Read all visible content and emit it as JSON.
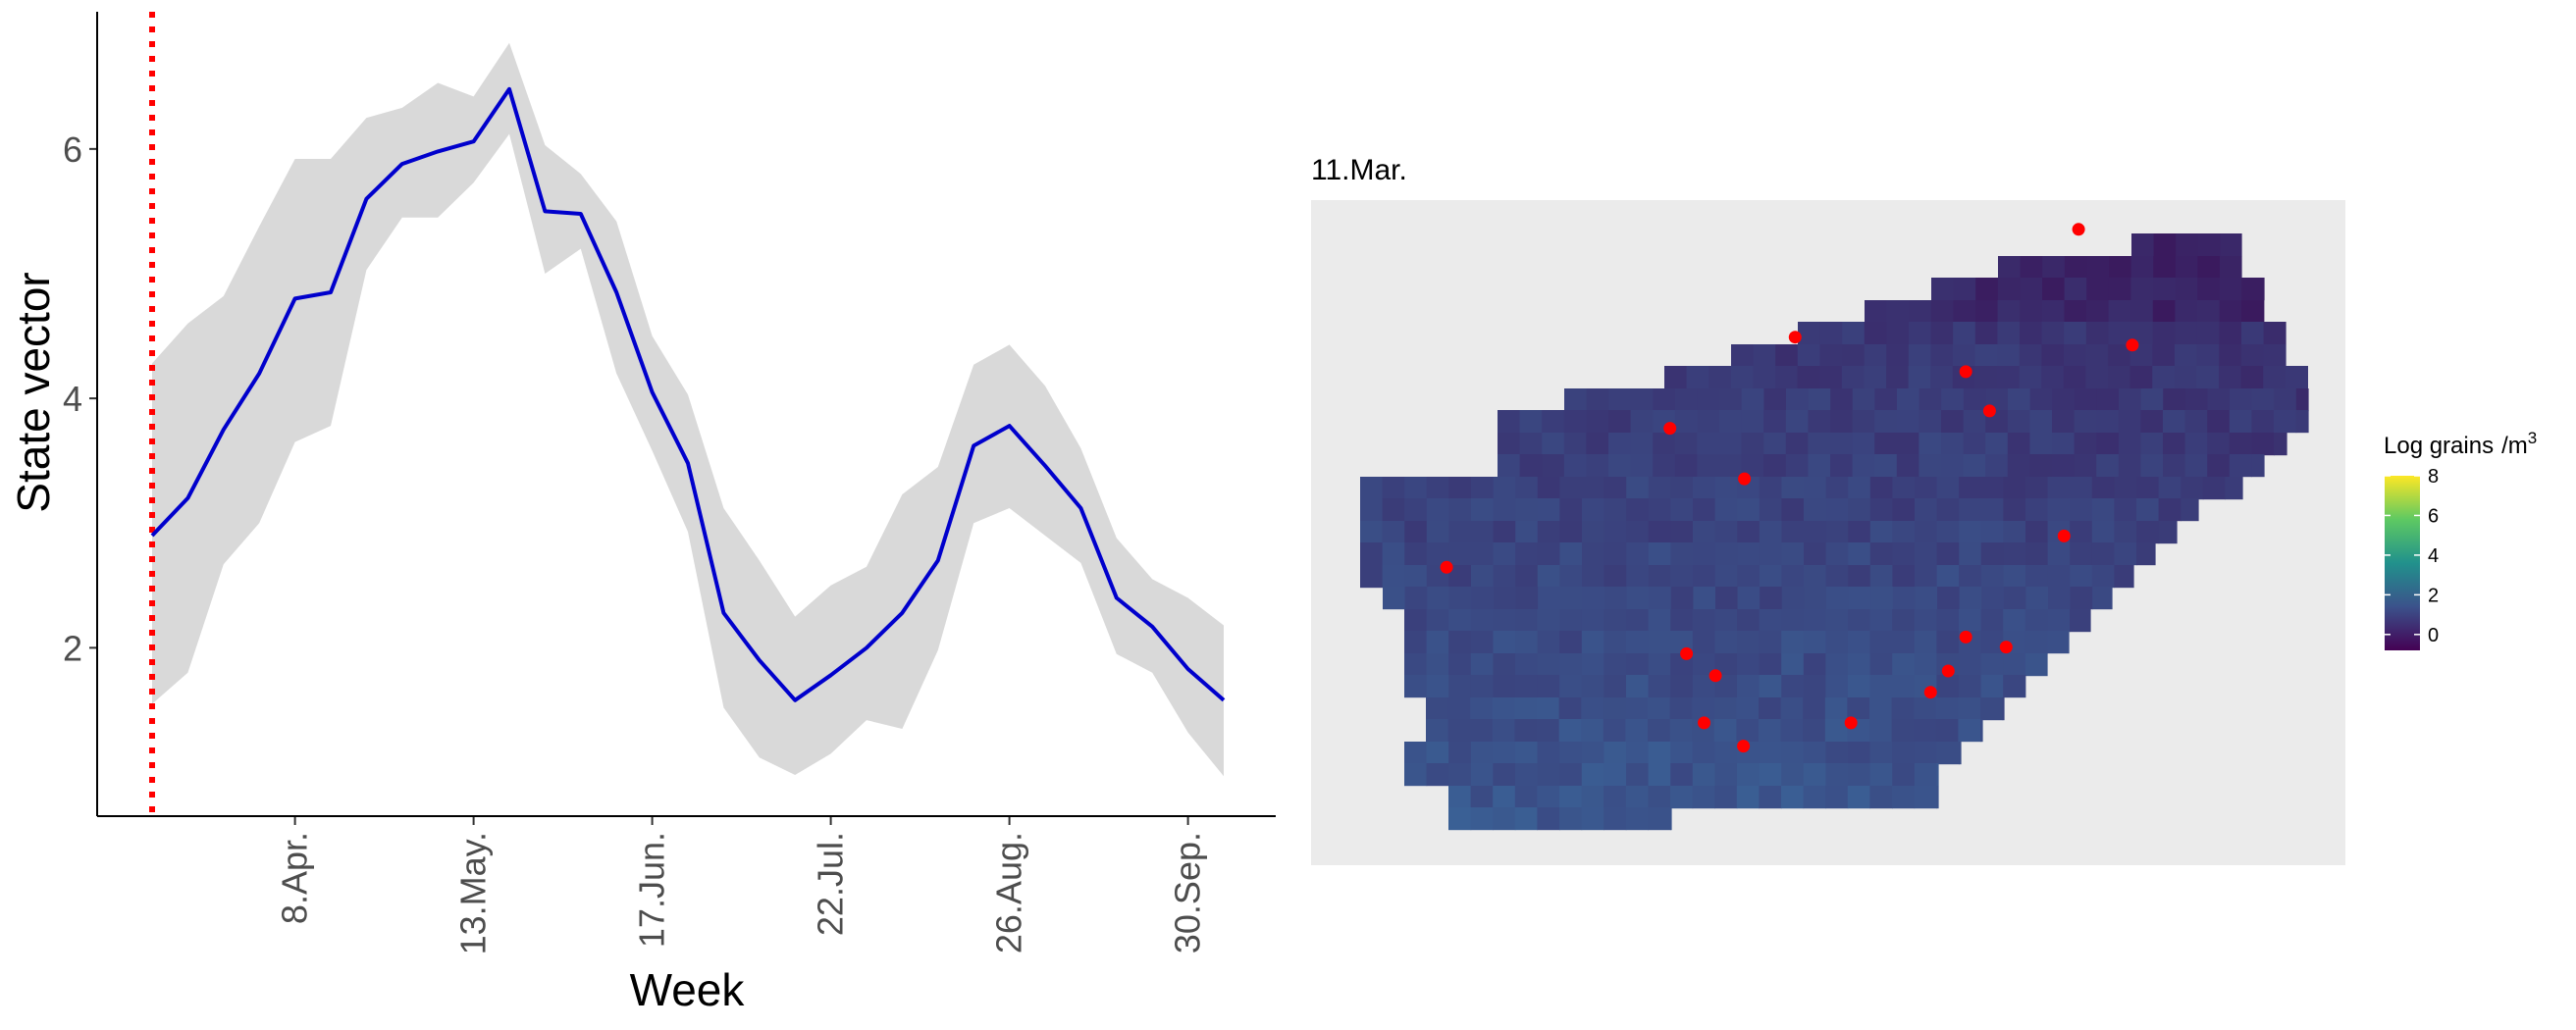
{
  "chart_data": [
    {
      "type": "line",
      "xlabel": "Week",
      "ylabel": "State vector",
      "ylim": [
        0.65,
        7.1
      ],
      "x_ticks": [
        "8.Apr.",
        "13.May.",
        "17.Jun.",
        "22.Jul.",
        "26.Aug.",
        "30.Sep."
      ],
      "y_ticks": [
        2,
        4,
        6
      ],
      "grid": false,
      "reference_line": {
        "week": 0,
        "color": "#ff0000",
        "style": "dotted"
      },
      "series": [
        {
          "color": "#0000cc",
          "band_color": "#d9d9d9",
          "weeks": [
            0,
            1,
            2,
            3,
            4,
            5,
            6,
            7,
            8,
            9,
            10,
            11,
            12,
            13,
            14,
            15,
            16,
            17,
            18,
            19,
            20,
            21,
            22,
            23,
            24,
            25,
            26,
            27,
            28,
            29,
            30
          ],
          "values": [
            2.9,
            3.2,
            3.75,
            4.2,
            4.8,
            4.85,
            5.6,
            5.88,
            5.98,
            6.06,
            6.48,
            5.5,
            5.48,
            4.85,
            4.05,
            3.48,
            2.28,
            1.9,
            1.58,
            1.78,
            2.0,
            2.28,
            2.7,
            3.62,
            3.78,
            3.46,
            3.12,
            2.4,
            2.17,
            1.83,
            1.58
          ],
          "lower": [
            1.55,
            1.8,
            2.67,
            3.0,
            3.65,
            3.78,
            5.03,
            5.45,
            5.45,
            5.73,
            6.12,
            5.0,
            5.2,
            4.2,
            3.58,
            2.93,
            1.52,
            1.12,
            0.98,
            1.15,
            1.42,
            1.35,
            1.98,
            3.0,
            3.12,
            2.9,
            2.68,
            1.95,
            1.8,
            1.32,
            0.97
          ],
          "upper": [
            4.28,
            4.6,
            4.82,
            5.38,
            5.92,
            5.92,
            6.25,
            6.33,
            6.53,
            6.42,
            6.85,
            6.03,
            5.8,
            5.42,
            4.5,
            4.03,
            3.12,
            2.7,
            2.25,
            2.5,
            2.65,
            3.23,
            3.45,
            4.27,
            4.43,
            4.1,
            3.6,
            2.88,
            2.55,
            2.4,
            2.18
          ]
        }
      ]
    },
    {
      "type": "heatmap",
      "title": "11.Mar.",
      "legend": {
        "title": "Log grains",
        "unit": "/m",
        "unit_superscript": "3",
        "position": "right",
        "ticks": [
          8,
          6,
          4,
          2,
          0
        ],
        "range": [
          -0.8,
          8
        ],
        "colors": [
          "#440154",
          "#3b528b",
          "#21918c",
          "#5ec962",
          "#fde725"
        ]
      },
      "background_color": "#ebebeb",
      "cell_color_range": [
        "#3a1a5e",
        "#3a6ea0"
      ],
      "stations_color": "#ff0000",
      "stations": [
        {
          "lon": 0.742,
          "lat": 0.956
        },
        {
          "lon": 0.468,
          "lat": 0.794
        },
        {
          "lon": 0.794,
          "lat": 0.782
        },
        {
          "lon": 0.633,
          "lat": 0.742
        },
        {
          "lon": 0.656,
          "lat": 0.683
        },
        {
          "lon": 0.347,
          "lat": 0.657
        },
        {
          "lon": 0.419,
          "lat": 0.581
        },
        {
          "lon": 0.728,
          "lat": 0.495
        },
        {
          "lon": 0.131,
          "lat": 0.448
        },
        {
          "lon": 0.633,
          "lat": 0.343
        },
        {
          "lon": 0.672,
          "lat": 0.328
        },
        {
          "lon": 0.363,
          "lat": 0.318
        },
        {
          "lon": 0.391,
          "lat": 0.285
        },
        {
          "lon": 0.616,
          "lat": 0.292
        },
        {
          "lon": 0.599,
          "lat": 0.26
        },
        {
          "lon": 0.38,
          "lat": 0.214
        },
        {
          "lon": 0.418,
          "lat": 0.179
        },
        {
          "lon": 0.522,
          "lat": 0.214
        }
      ]
    }
  ]
}
